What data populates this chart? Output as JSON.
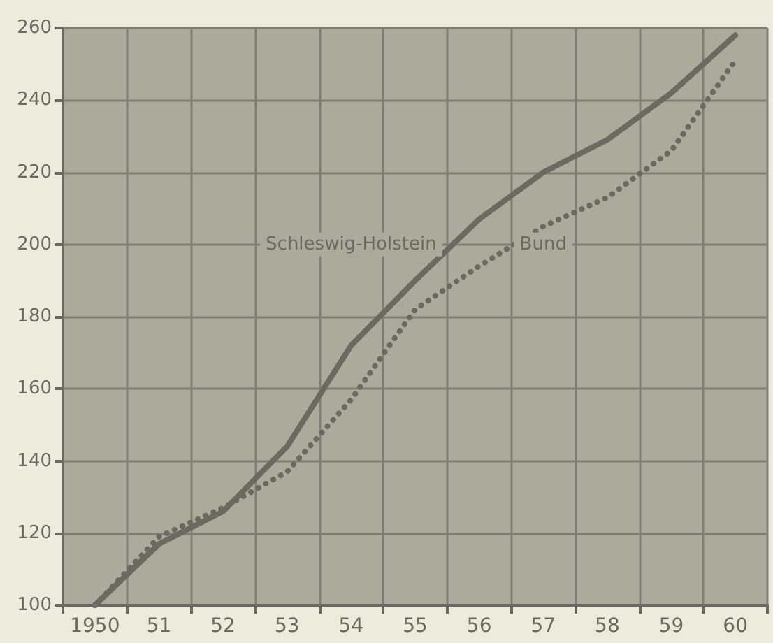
{
  "chart_data": {
    "type": "line",
    "categories": [
      "1950",
      "51",
      "52",
      "53",
      "54",
      "55",
      "56",
      "57",
      "58",
      "59",
      "60"
    ],
    "series": [
      {
        "name": "Schleswig-Holstein",
        "color": "#6a6a60",
        "line_style": "solid",
        "values": [
          100,
          117,
          126,
          144,
          172,
          190,
          207,
          220,
          229,
          242,
          258
        ]
      },
      {
        "name": "Bund",
        "color": "#6a6a60",
        "line_style": "dotted",
        "values": [
          100,
          119,
          127,
          137,
          157,
          182,
          194,
          205,
          213,
          226,
          251
        ]
      }
    ],
    "ylim": [
      100,
      260
    ],
    "yticks": [
      100,
      120,
      140,
      160,
      180,
      200,
      220,
      240,
      260
    ],
    "grid": true,
    "legend": false,
    "marker": "none"
  }
}
